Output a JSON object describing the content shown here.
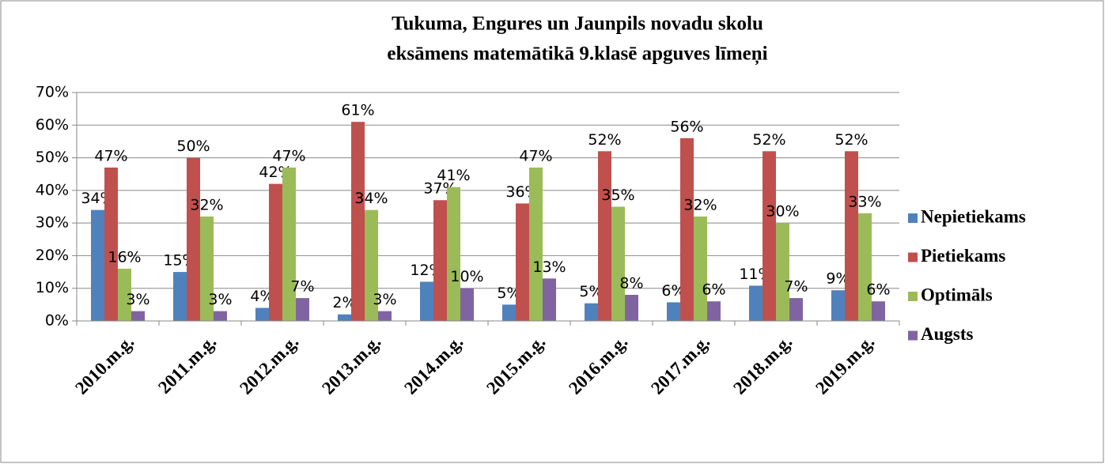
{
  "chart_data": {
    "type": "bar",
    "title": [
      "Tukuma, Engures un Jaunpils novadu skolu",
      "eksāmens matemātikā 9.klasē apguves līmeņi"
    ],
    "categories": [
      "2010.m.g.",
      "2011.m.g.",
      "2012.m.g.",
      "2013.m.g.",
      "2014.m.g.",
      "2015.m.g.",
      "2016.m.g.",
      "2017.m.g.",
      "2018.m.g.",
      "2019.m.g."
    ],
    "series": [
      {
        "name": "Nepietiekams",
        "color": "#4f81bd",
        "values": [
          34,
          15,
          4,
          2,
          12,
          5,
          5.4,
          5.7,
          10.8,
          9.4
        ],
        "value_labels": [
          "34%",
          "15%",
          "4%",
          "2%",
          "12%",
          "5%",
          "5%",
          "6%",
          "11%",
          "9%"
        ]
      },
      {
        "name": "Pietiekams",
        "color": "#c0504d",
        "values": [
          47,
          50,
          42,
          61,
          37,
          36,
          52,
          56,
          52,
          52
        ],
        "value_labels": [
          "47%",
          "50%",
          "42%",
          "61%",
          "37%",
          "36%",
          "52%",
          "56%",
          "52%",
          "52%"
        ]
      },
      {
        "name": "Optimāls",
        "color": "#9bbb59",
        "values": [
          16,
          32,
          47,
          34,
          41,
          47,
          35,
          32,
          30,
          33
        ],
        "value_labels": [
          "16%",
          "32%",
          "47%",
          "34%",
          "41%",
          "47%",
          "35%",
          "32%",
          "30%",
          "33%"
        ]
      },
      {
        "name": "Augsts",
        "color": "#8064a2",
        "values": [
          3,
          3,
          7,
          3,
          10,
          13,
          8,
          6,
          7,
          6
        ],
        "value_labels": [
          "3%",
          "3%",
          "7%",
          "3%",
          "10%",
          "13%",
          "8%",
          "6%",
          "7%",
          "6%"
        ]
      }
    ],
    "ylim": [
      0,
      70
    ],
    "yticks": [
      {
        "value": 0,
        "label": "0%"
      },
      {
        "value": 10,
        "label": "10%"
      },
      {
        "value": 20,
        "label": "20%"
      },
      {
        "value": 30,
        "label": "30%"
      },
      {
        "value": 40,
        "label": "40%"
      },
      {
        "value": 50,
        "label": "50%"
      },
      {
        "value": 60,
        "label": "60%"
      },
      {
        "value": 70,
        "label": "70%"
      }
    ],
    "grid": true,
    "legend": "right"
  }
}
